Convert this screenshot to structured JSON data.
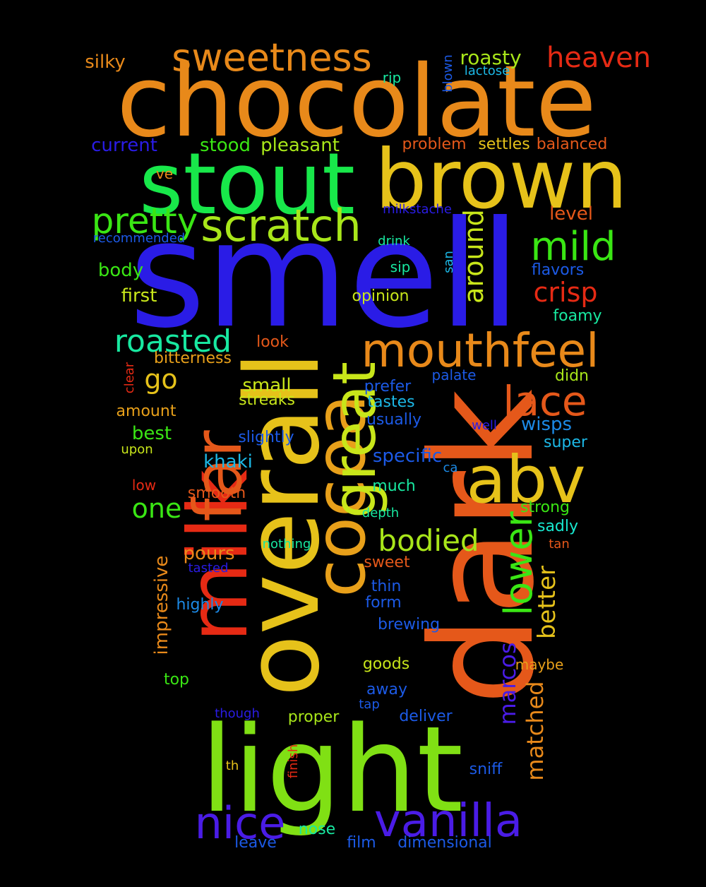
{
  "background": "#000000",
  "words": [
    {
      "text": "smell",
      "color": "#2a1ce6"
    },
    {
      "text": "chocolate",
      "color": "#e8891a"
    },
    {
      "text": "dark",
      "color": "#e5581a"
    },
    {
      "text": "light",
      "color": "#80e014"
    },
    {
      "text": "stout",
      "color": "#18e84a"
    },
    {
      "text": "brown",
      "color": "#e6c21a"
    },
    {
      "text": "overall",
      "color": "#e6c21a"
    },
    {
      "text": "milk",
      "color": "#e62a14"
    },
    {
      "text": "far",
      "color": "#e5581a"
    },
    {
      "text": "cocoa",
      "color": "#e8a01a"
    },
    {
      "text": "great",
      "color": "#c8e61a"
    },
    {
      "text": "abv",
      "color": "#e6c21a"
    },
    {
      "text": "mouthfeel",
      "color": "#e8891a"
    },
    {
      "text": "vanilla",
      "color": "#4a1ce6"
    },
    {
      "text": "scratch",
      "color": "#a8e61a"
    },
    {
      "text": "sweetness",
      "color": "#e8891a"
    },
    {
      "text": "nice",
      "color": "#4a1ce6"
    },
    {
      "text": "lace",
      "color": "#e5581a"
    },
    {
      "text": "mild",
      "color": "#3ae614"
    },
    {
      "text": "lower",
      "color": "#3ae614"
    },
    {
      "text": "pretty",
      "color": "#3ae614"
    },
    {
      "text": "heaven",
      "color": "#e62a14"
    },
    {
      "text": "bodied",
      "color": "#a8e61a"
    },
    {
      "text": "roasted",
      "color": "#18e8a0"
    },
    {
      "text": "crisp",
      "color": "#e62a14"
    },
    {
      "text": "better",
      "color": "#e6c21a"
    },
    {
      "text": "matched",
      "color": "#e8891a"
    },
    {
      "text": "marcos",
      "color": "#4a1ce6"
    },
    {
      "text": "one",
      "color": "#3ae614"
    },
    {
      "text": "around",
      "color": "#c8e61a"
    },
    {
      "text": "go",
      "color": "#e6c21a"
    },
    {
      "text": "roasty",
      "color": "#a8e61a"
    },
    {
      "text": "silky",
      "color": "#e8891a"
    },
    {
      "text": "impressive",
      "color": "#e8891a"
    },
    {
      "text": "current",
      "color": "#2a1ce6"
    },
    {
      "text": "stood",
      "color": "#3ae614"
    },
    {
      "text": "pleasant",
      "color": "#a8e61a"
    },
    {
      "text": "khaki",
      "color": "#1cb8e6"
    },
    {
      "text": "specific",
      "color": "#1c5ae6"
    },
    {
      "text": "pours",
      "color": "#e8891a"
    },
    {
      "text": "body",
      "color": "#3ae614"
    },
    {
      "text": "wisps",
      "color": "#1c8ae6"
    },
    {
      "text": "best",
      "color": "#3ae614"
    },
    {
      "text": "small",
      "color": "#c8e61a"
    },
    {
      "text": "first",
      "color": "#c8e61a"
    },
    {
      "text": "level",
      "color": "#e5581a"
    },
    {
      "text": "settles",
      "color": "#e6c21a"
    },
    {
      "text": "balanced",
      "color": "#e5581a"
    },
    {
      "text": "problem",
      "color": "#e5581a"
    },
    {
      "text": "flavors",
      "color": "#1c5ae6"
    },
    {
      "text": "foamy",
      "color": "#18e8a0"
    },
    {
      "text": "opinion",
      "color": "#c8e61a"
    },
    {
      "text": "didn",
      "color": "#a8e61a"
    },
    {
      "text": "streaks",
      "color": "#c8e61a"
    },
    {
      "text": "amount",
      "color": "#e8a01a"
    },
    {
      "text": "look",
      "color": "#e5581a"
    },
    {
      "text": "bitterness",
      "color": "#e8a01a"
    },
    {
      "text": "prefer",
      "color": "#1c5ae6"
    },
    {
      "text": "tastes",
      "color": "#1cb8e6"
    },
    {
      "text": "usually",
      "color": "#1c5ae6"
    },
    {
      "text": "slightly",
      "color": "#1c5ae6"
    },
    {
      "text": "super",
      "color": "#1cb8e6"
    },
    {
      "text": "much",
      "color": "#18e8a0"
    },
    {
      "text": "smooth",
      "color": "#e5581a"
    },
    {
      "text": "strong",
      "color": "#3ae614"
    },
    {
      "text": "sadly",
      "color": "#18e8d0"
    },
    {
      "text": "brewing",
      "color": "#1c5ae6"
    },
    {
      "text": "highly",
      "color": "#1c8ae6"
    },
    {
      "text": "form",
      "color": "#1c5ae6"
    },
    {
      "text": "sweet",
      "color": "#e5581a"
    },
    {
      "text": "thin",
      "color": "#1c5ae6"
    },
    {
      "text": "goods",
      "color": "#c8e61a"
    },
    {
      "text": "away",
      "color": "#1c5ae6"
    },
    {
      "text": "deliver",
      "color": "#1c5ae6"
    },
    {
      "text": "proper",
      "color": "#a8e61a"
    },
    {
      "text": "sniff",
      "color": "#1c5ae6"
    },
    {
      "text": "nose",
      "color": "#18e8a0"
    },
    {
      "text": "film",
      "color": "#1c5ae6"
    },
    {
      "text": "dimensional",
      "color": "#1c5ae6"
    },
    {
      "text": "leave",
      "color": "#1c5ae6"
    },
    {
      "text": "top",
      "color": "#3ae614"
    },
    {
      "text": "maybe",
      "color": "#e8a01a"
    },
    {
      "text": "tap",
      "color": "#1c5ae6"
    },
    {
      "text": "though",
      "color": "#2a1ce6"
    },
    {
      "text": "th",
      "color": "#e6c21a"
    },
    {
      "text": "finish",
      "color": "#e62a14"
    },
    {
      "text": "tasted",
      "color": "#2a1ce6"
    },
    {
      "text": "nothing",
      "color": "#18e8a0"
    },
    {
      "text": "tan",
      "color": "#e5581a"
    },
    {
      "text": "depth",
      "color": "#18e8a0"
    },
    {
      "text": "ca",
      "color": "#1c8ae6"
    },
    {
      "text": "low",
      "color": "#e62a14"
    },
    {
      "text": "upon",
      "color": "#c8e61a"
    },
    {
      "text": "well",
      "color": "#2a1ce6"
    },
    {
      "text": "palate",
      "color": "#1c5ae6"
    },
    {
      "text": "clear",
      "color": "#e62a14"
    },
    {
      "text": "san",
      "color": "#1cb8e6"
    },
    {
      "text": "sip",
      "color": "#18e8a0"
    },
    {
      "text": "drink",
      "color": "#18e8a0"
    },
    {
      "text": "recommended",
      "color": "#1c5ae6"
    },
    {
      "text": "milkstache",
      "color": "#2a1ce6"
    },
    {
      "text": "ve",
      "color": "#e8891a"
    },
    {
      "text": "rip",
      "color": "#18e8a0"
    },
    {
      "text": "blown",
      "color": "#1c5ae6"
    },
    {
      "text": "lactose",
      "color": "#1cb8e6"
    }
  ]
}
